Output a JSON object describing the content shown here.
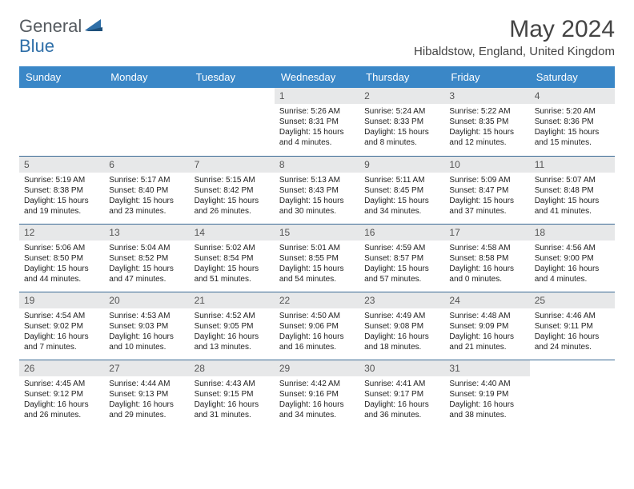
{
  "logo": {
    "general": "General",
    "blue": "Blue"
  },
  "title": "May 2024",
  "location": "Hibaldstow, England, United Kingdom",
  "colors": {
    "header_bg": "#3a87c7",
    "header_fg": "#ffffff",
    "daynum_bg": "#e7e8e9",
    "border": "#3a6a95",
    "logo_gray": "#555a5f",
    "logo_blue": "#2f6fa8"
  },
  "weekdays": [
    "Sunday",
    "Monday",
    "Tuesday",
    "Wednesday",
    "Thursday",
    "Friday",
    "Saturday"
  ],
  "weeks": [
    [
      null,
      null,
      null,
      {
        "n": "1",
        "sr": "5:26 AM",
        "ss": "8:31 PM",
        "dl": "15 hours and 4 minutes."
      },
      {
        "n": "2",
        "sr": "5:24 AM",
        "ss": "8:33 PM",
        "dl": "15 hours and 8 minutes."
      },
      {
        "n": "3",
        "sr": "5:22 AM",
        "ss": "8:35 PM",
        "dl": "15 hours and 12 minutes."
      },
      {
        "n": "4",
        "sr": "5:20 AM",
        "ss": "8:36 PM",
        "dl": "15 hours and 15 minutes."
      }
    ],
    [
      {
        "n": "5",
        "sr": "5:19 AM",
        "ss": "8:38 PM",
        "dl": "15 hours and 19 minutes."
      },
      {
        "n": "6",
        "sr": "5:17 AM",
        "ss": "8:40 PM",
        "dl": "15 hours and 23 minutes."
      },
      {
        "n": "7",
        "sr": "5:15 AM",
        "ss": "8:42 PM",
        "dl": "15 hours and 26 minutes."
      },
      {
        "n": "8",
        "sr": "5:13 AM",
        "ss": "8:43 PM",
        "dl": "15 hours and 30 minutes."
      },
      {
        "n": "9",
        "sr": "5:11 AM",
        "ss": "8:45 PM",
        "dl": "15 hours and 34 minutes."
      },
      {
        "n": "10",
        "sr": "5:09 AM",
        "ss": "8:47 PM",
        "dl": "15 hours and 37 minutes."
      },
      {
        "n": "11",
        "sr": "5:07 AM",
        "ss": "8:48 PM",
        "dl": "15 hours and 41 minutes."
      }
    ],
    [
      {
        "n": "12",
        "sr": "5:06 AM",
        "ss": "8:50 PM",
        "dl": "15 hours and 44 minutes."
      },
      {
        "n": "13",
        "sr": "5:04 AM",
        "ss": "8:52 PM",
        "dl": "15 hours and 47 minutes."
      },
      {
        "n": "14",
        "sr": "5:02 AM",
        "ss": "8:54 PM",
        "dl": "15 hours and 51 minutes."
      },
      {
        "n": "15",
        "sr": "5:01 AM",
        "ss": "8:55 PM",
        "dl": "15 hours and 54 minutes."
      },
      {
        "n": "16",
        "sr": "4:59 AM",
        "ss": "8:57 PM",
        "dl": "15 hours and 57 minutes."
      },
      {
        "n": "17",
        "sr": "4:58 AM",
        "ss": "8:58 PM",
        "dl": "16 hours and 0 minutes."
      },
      {
        "n": "18",
        "sr": "4:56 AM",
        "ss": "9:00 PM",
        "dl": "16 hours and 4 minutes."
      }
    ],
    [
      {
        "n": "19",
        "sr": "4:54 AM",
        "ss": "9:02 PM",
        "dl": "16 hours and 7 minutes."
      },
      {
        "n": "20",
        "sr": "4:53 AM",
        "ss": "9:03 PM",
        "dl": "16 hours and 10 minutes."
      },
      {
        "n": "21",
        "sr": "4:52 AM",
        "ss": "9:05 PM",
        "dl": "16 hours and 13 minutes."
      },
      {
        "n": "22",
        "sr": "4:50 AM",
        "ss": "9:06 PM",
        "dl": "16 hours and 16 minutes."
      },
      {
        "n": "23",
        "sr": "4:49 AM",
        "ss": "9:08 PM",
        "dl": "16 hours and 18 minutes."
      },
      {
        "n": "24",
        "sr": "4:48 AM",
        "ss": "9:09 PM",
        "dl": "16 hours and 21 minutes."
      },
      {
        "n": "25",
        "sr": "4:46 AM",
        "ss": "9:11 PM",
        "dl": "16 hours and 24 minutes."
      }
    ],
    [
      {
        "n": "26",
        "sr": "4:45 AM",
        "ss": "9:12 PM",
        "dl": "16 hours and 26 minutes."
      },
      {
        "n": "27",
        "sr": "4:44 AM",
        "ss": "9:13 PM",
        "dl": "16 hours and 29 minutes."
      },
      {
        "n": "28",
        "sr": "4:43 AM",
        "ss": "9:15 PM",
        "dl": "16 hours and 31 minutes."
      },
      {
        "n": "29",
        "sr": "4:42 AM",
        "ss": "9:16 PM",
        "dl": "16 hours and 34 minutes."
      },
      {
        "n": "30",
        "sr": "4:41 AM",
        "ss": "9:17 PM",
        "dl": "16 hours and 36 minutes."
      },
      {
        "n": "31",
        "sr": "4:40 AM",
        "ss": "9:19 PM",
        "dl": "16 hours and 38 minutes."
      },
      null
    ]
  ],
  "labels": {
    "sunrise": "Sunrise:",
    "sunset": "Sunset:",
    "daylight": "Daylight:"
  }
}
